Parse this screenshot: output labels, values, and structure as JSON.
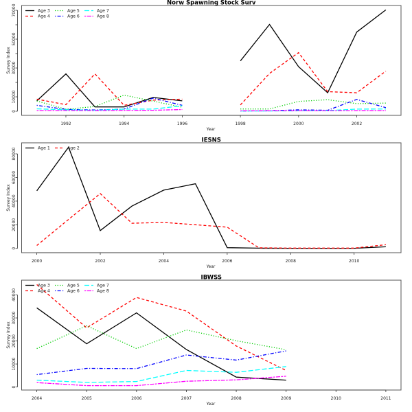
{
  "chart_data": [
    {
      "type": "line",
      "title": "Norw Spawning Stock Surv",
      "xlabel": "Year",
      "ylabel": "Survey Index",
      "xlim": [
        1991,
        2003
      ],
      "ylim": [
        200,
        70300
      ],
      "x_ticks": [
        1992,
        1994,
        1996,
        1998,
        2000,
        2002
      ],
      "y_ticks": [
        0,
        10000,
        20000,
        30000,
        40000,
        50000,
        60000,
        70000
      ],
      "y_tick_labels": [
        "0",
        "10000",
        "",
        "30000",
        "",
        "50000",
        "",
        "70000"
      ],
      "legend": "top-left",
      "x": [
        1991,
        1992,
        1993,
        1994,
        1995,
        1996,
        1997,
        1998,
        1999,
        2000,
        2001,
        2002,
        2003
      ],
      "series": [
        {
          "name": "Age 3",
          "color": "#000000",
          "linestyle": "solid",
          "values": [
            7200,
            25900,
            3000,
            3000,
            9600,
            7200,
            null,
            34900,
            60200,
            30900,
            12800,
            54900,
            70300
          ]
        },
        {
          "name": "Age 4",
          "color": "#ff0000",
          "linestyle": "dashed",
          "values": [
            8400,
            4600,
            25900,
            4100,
            7700,
            8400,
            null,
            4400,
            26200,
            40700,
            13600,
            12800,
            27800
          ]
        },
        {
          "name": "Age 5",
          "color": "#00cd00",
          "linestyle": "dotted",
          "values": [
            7100,
            1400,
            3300,
            11200,
            7000,
            2800,
            null,
            1600,
            1600,
            6800,
            8000,
            5300,
            5700
          ]
        },
        {
          "name": "Age 6",
          "color": "#0000ff",
          "linestyle": "dotdash",
          "values": [
            4100,
            1300,
            900,
            1500,
            9100,
            4100,
            null,
            200,
            300,
            1000,
            700,
            8200,
            2500
          ]
        },
        {
          "name": "Age 7",
          "color": "#00ffff",
          "linestyle": "longdash",
          "values": [
            1700,
            1000,
            700,
            1500,
            1500,
            3800,
            null,
            200,
            200,
            300,
            500,
            1500,
            1600
          ]
        },
        {
          "name": "Age 8",
          "color": "#ff00ff",
          "linestyle": "twodash",
          "values": [
            500,
            500,
            400,
            600,
            700,
            1200,
            null,
            300,
            300,
            300,
            300,
            400,
            400
          ]
        }
      ]
    },
    {
      "type": "line",
      "title": "IESNS",
      "xlabel": "Year",
      "ylabel": "Survey Index",
      "xlim": [
        2000,
        2011
      ],
      "ylim": [
        100,
        85600
      ],
      "x_ticks": [
        2000,
        2002,
        2004,
        2006,
        2008,
        2010
      ],
      "y_ticks": [
        0,
        20000,
        40000,
        60000,
        80000
      ],
      "y_tick_labels": [
        "0",
        "20000",
        "40000",
        "60000",
        "80000"
      ],
      "legend": "top-left",
      "x": [
        2000,
        2001,
        2002,
        2003,
        2004,
        2005,
        2006,
        2007,
        2008,
        2009,
        2010,
        2011
      ],
      "series": [
        {
          "name": "Age 1",
          "color": "#000000",
          "linestyle": "solid",
          "values": [
            48700,
            85600,
            15100,
            35800,
            49300,
            54700,
            600,
            200,
            100,
            100,
            100,
            1400
          ]
        },
        {
          "name": "Age 2",
          "color": "#ff0000",
          "linestyle": "dashed",
          "values": [
            2500,
            24500,
            46400,
            21300,
            22000,
            20000,
            18000,
            500,
            300,
            300,
            300,
            3100
          ]
        }
      ]
    },
    {
      "type": "line",
      "title": "IBWSS",
      "xlabel": "Year",
      "ylabel": "Survey Index",
      "xlim": [
        2004,
        2011
      ],
      "ylim": [
        600,
        44500
      ],
      "x_ticks": [
        2004,
        2005,
        2006,
        2007,
        2008,
        2009,
        2010,
        2011
      ],
      "y_ticks": [
        0,
        10000,
        20000,
        30000,
        40000
      ],
      "y_tick_labels": [
        "0",
        "10000",
        "20000",
        "30000",
        "40000"
      ],
      "legend": "top-left",
      "x": [
        2004,
        2005,
        2006,
        2007,
        2008,
        2009
      ],
      "series": [
        {
          "name": "Age 3",
          "color": "#000000",
          "linestyle": "solid",
          "values": [
            34400,
            18800,
            32200,
            16300,
            4300,
            3000
          ]
        },
        {
          "name": "Age 4",
          "color": "#ff0000",
          "linestyle": "dashed",
          "values": [
            44500,
            25700,
            38900,
            33000,
            17800,
            7200
          ]
        },
        {
          "name": "Age 5",
          "color": "#00cd00",
          "linestyle": "dotted",
          "values": [
            16700,
            26600,
            16700,
            24800,
            20100,
            16200
          ]
        },
        {
          "name": "Age 6",
          "color": "#0000ff",
          "linestyle": "dotdash",
          "values": [
            5400,
            8100,
            8000,
            13900,
            11700,
            15700
          ]
        },
        {
          "name": "Age 7",
          "color": "#00ffff",
          "linestyle": "longdash",
          "values": [
            3000,
            2000,
            2400,
            7200,
            6400,
            8900
          ]
        },
        {
          "name": "Age 8",
          "color": "#ff00ff",
          "linestyle": "twodash",
          "values": [
            1900,
            600,
            600,
            2500,
            3100,
            4700
          ]
        }
      ]
    }
  ]
}
